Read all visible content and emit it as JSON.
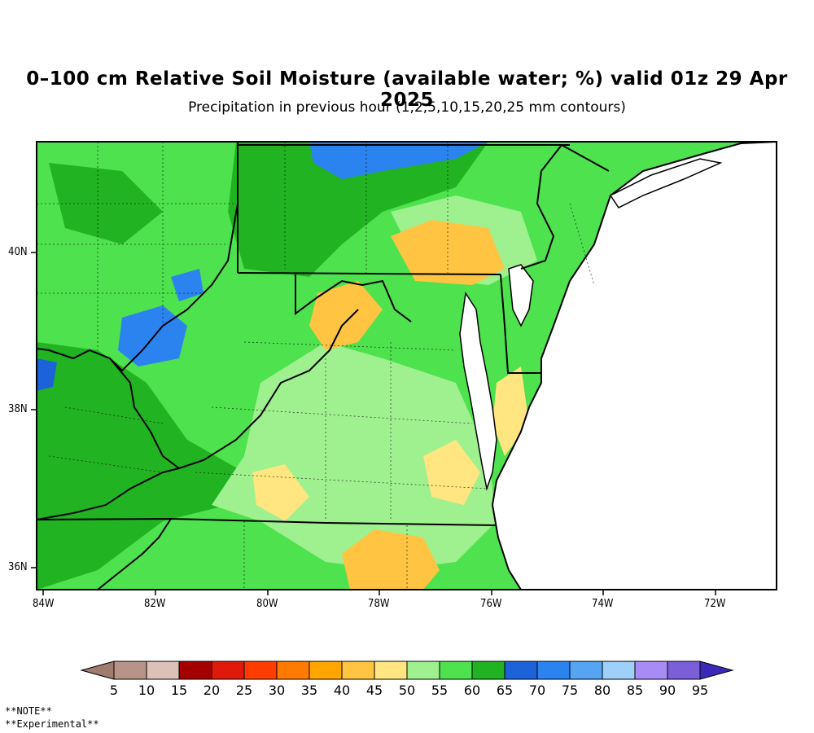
{
  "title": "0–100 cm Relative Soil Moisture (available water; %) valid 01z 29 Apr 2025",
  "subtitle": "Precipitation in previous hour (1,2,5,10,15,20,25 mm contours)",
  "map": {
    "lon_labels": [
      "84W",
      "82W",
      "80W",
      "78W",
      "76W",
      "74W",
      "72W"
    ],
    "lat_labels": [
      "40N",
      "38N",
      "36N"
    ],
    "land_color": "#4ee24e",
    "water_color": "#ffffff"
  },
  "colorbar": {
    "labels": [
      "5",
      "10",
      "15",
      "20",
      "25",
      "30",
      "35",
      "40",
      "45",
      "50",
      "55",
      "60",
      "65",
      "70",
      "75",
      "80",
      "85",
      "90",
      "95"
    ],
    "colors": [
      "#a07c6e",
      "#b89488",
      "#dcc1b8",
      "#a50000",
      "#e01a0a",
      "#ff3d00",
      "#ff7a00",
      "#ffa500",
      "#ffc442",
      "#ffe680",
      "#9ff08f",
      "#4ee24e",
      "#21b321",
      "#1c62d9",
      "#2b83ef",
      "#55a5f2",
      "#9fd0f9",
      "#a98bf5",
      "#7a5fd9",
      "#3a2ab7"
    ]
  },
  "notes": {
    "line1": "**NOTE**",
    "line2": "**Experimental**"
  }
}
